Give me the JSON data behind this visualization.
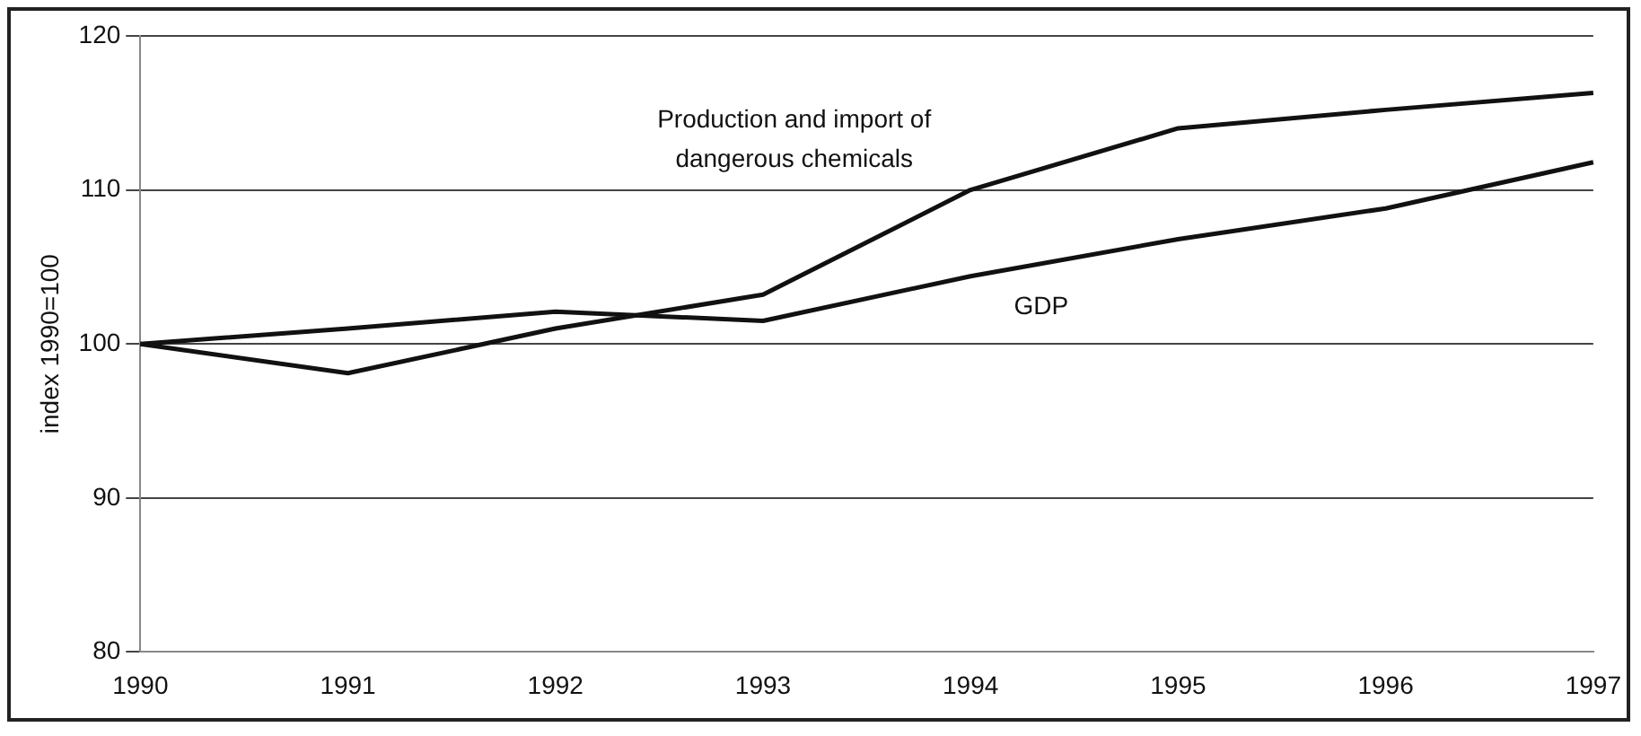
{
  "chart_data": {
    "type": "line",
    "ylabel": "index 1990=100",
    "categories": [
      "1990",
      "1991",
      "1992",
      "1993",
      "1994",
      "1995",
      "1996",
      "1997"
    ],
    "series": [
      {
        "name": "Production and import of dangerous chemicals",
        "color": "#111111",
        "values": [
          100,
          98.1,
          101,
          103.2,
          110,
          114,
          115.2,
          116.3
        ]
      },
      {
        "name": "GDP",
        "color": "#111111",
        "values": [
          100,
          101,
          102.1,
          101.5,
          104.4,
          106.8,
          108.8,
          111.8
        ]
      }
    ],
    "ylim": [
      80,
      120
    ],
    "yticks": [
      80,
      90,
      100,
      110,
      120
    ],
    "grid": "y",
    "legend": false,
    "marker": "none",
    "line_style": "solid"
  }
}
